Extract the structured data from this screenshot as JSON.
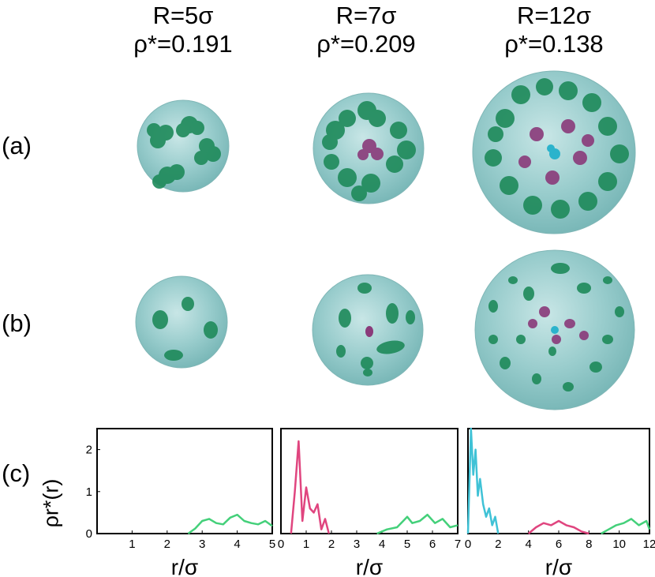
{
  "columns": [
    {
      "r_label": "R=5σ",
      "rho_label": "ρ*=0.191"
    },
    {
      "r_label": "R=7σ",
      "rho_label": "ρ*=0.209"
    },
    {
      "r_label": "R=12σ",
      "rho_label": "ρ*=0.138"
    }
  ],
  "row_labels": {
    "a": "(a)",
    "b": "(b)",
    "c": "(c)"
  },
  "colors": {
    "sphere": "#8ec9c9",
    "green": "#1e8a5a",
    "purple": "#8a3a7a",
    "cyan": "#2bb3cc",
    "line_green": "#44d07a",
    "line_magenta": "#e0457f",
    "line_cyan": "#3fc2d6"
  },
  "chart_data": [
    {
      "type": "line",
      "ylabel": "ρr*(r)",
      "xlabel": "r/σ",
      "xlim": [
        0,
        5
      ],
      "ylim": [
        0,
        2.5
      ],
      "xticks": [
        "1",
        "2",
        "3",
        "4",
        "5"
      ],
      "yticks": [
        "0",
        "1",
        "2"
      ],
      "series": [
        {
          "color": "#44d07a",
          "x": [
            2.6,
            2.8,
            3.0,
            3.2,
            3.4,
            3.6,
            3.8,
            4.0,
            4.2,
            4.4,
            4.6,
            4.8,
            5.0
          ],
          "y": [
            0.0,
            0.12,
            0.3,
            0.35,
            0.25,
            0.22,
            0.38,
            0.45,
            0.3,
            0.25,
            0.22,
            0.3,
            0.18
          ]
        }
      ]
    },
    {
      "type": "line",
      "xlabel": "r/σ",
      "xlim": [
        0,
        7
      ],
      "ylim": [
        0,
        2.5
      ],
      "xticks": [
        "0",
        "1",
        "2",
        "3",
        "4",
        "5",
        "6",
        "7"
      ],
      "series": [
        {
          "color": "#e0457f",
          "x": [
            0.4,
            0.55,
            0.7,
            0.85,
            1.0,
            1.15,
            1.3,
            1.45,
            1.6,
            1.75,
            1.9
          ],
          "y": [
            0.0,
            1.0,
            2.2,
            0.3,
            1.1,
            0.6,
            0.5,
            0.7,
            0.1,
            0.35,
            0.0
          ]
        },
        {
          "color": "#44d07a",
          "x": [
            3.8,
            4.2,
            4.6,
            5.0,
            5.2,
            5.5,
            5.8,
            6.1,
            6.4,
            6.7,
            7.0
          ],
          "y": [
            0.0,
            0.1,
            0.15,
            0.4,
            0.25,
            0.3,
            0.45,
            0.25,
            0.35,
            0.15,
            0.2
          ]
        }
      ]
    },
    {
      "type": "line",
      "xlabel": "r/σ",
      "xlim": [
        0,
        12
      ],
      "ylim": [
        0,
        2.5
      ],
      "xticks": [
        "0",
        "2",
        "4",
        "6",
        "8",
        "10",
        "12"
      ],
      "series": [
        {
          "color": "#3fc2d6",
          "x": [
            0.0,
            0.2,
            0.35,
            0.5,
            0.65,
            0.8,
            1.0,
            1.2,
            1.4,
            1.6,
            1.8,
            2.0
          ],
          "y": [
            0.0,
            2.5,
            1.4,
            2.0,
            0.9,
            1.3,
            0.7,
            0.4,
            0.6,
            0.2,
            0.4,
            0.0
          ]
        },
        {
          "color": "#e0457f",
          "x": [
            4.0,
            4.5,
            5.0,
            5.5,
            6.0,
            6.5,
            7.0,
            7.5,
            8.0
          ],
          "y": [
            0.0,
            0.15,
            0.25,
            0.2,
            0.3,
            0.2,
            0.15,
            0.05,
            0.0
          ]
        },
        {
          "color": "#44d07a",
          "x": [
            8.8,
            9.3,
            9.8,
            10.3,
            10.8,
            11.3,
            11.8,
            12.0
          ],
          "y": [
            0.0,
            0.1,
            0.2,
            0.25,
            0.35,
            0.2,
            0.3,
            0.1
          ]
        }
      ]
    }
  ]
}
